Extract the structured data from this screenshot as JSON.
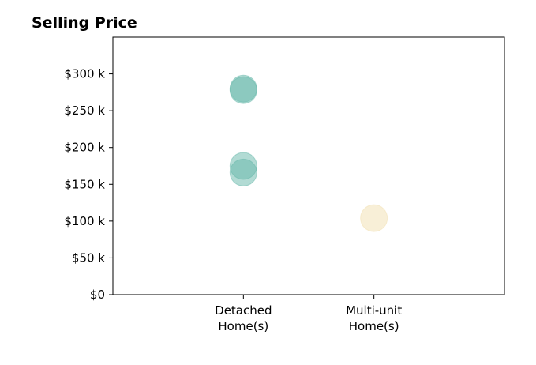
{
  "chart_data": {
    "type": "scatter",
    "title": "Selling Price",
    "xlabel": "",
    "ylabel": "",
    "categories": [
      "Detached\nHome(s)",
      "Multi-unit\nHome(s)"
    ],
    "y_ticks": [
      "$0",
      "$50 k",
      "$100 k",
      "$150 k",
      "$200 k",
      "$250 k",
      "$300 k"
    ],
    "y_tick_values": [
      0,
      50000,
      100000,
      150000,
      200000,
      250000,
      300000
    ],
    "ylim": [
      0,
      350000
    ],
    "x_range": [
      -1,
      2
    ],
    "grid": false,
    "legend": "none",
    "series": [
      {
        "category": "Detached\nHome(s)",
        "color": "#66b8a9",
        "values": [
          280000,
          278000,
          175000,
          166000
        ]
      },
      {
        "category": "Multi-unit\nHome(s)",
        "color": "#f2dfb0",
        "values": [
          104000
        ]
      }
    ]
  }
}
